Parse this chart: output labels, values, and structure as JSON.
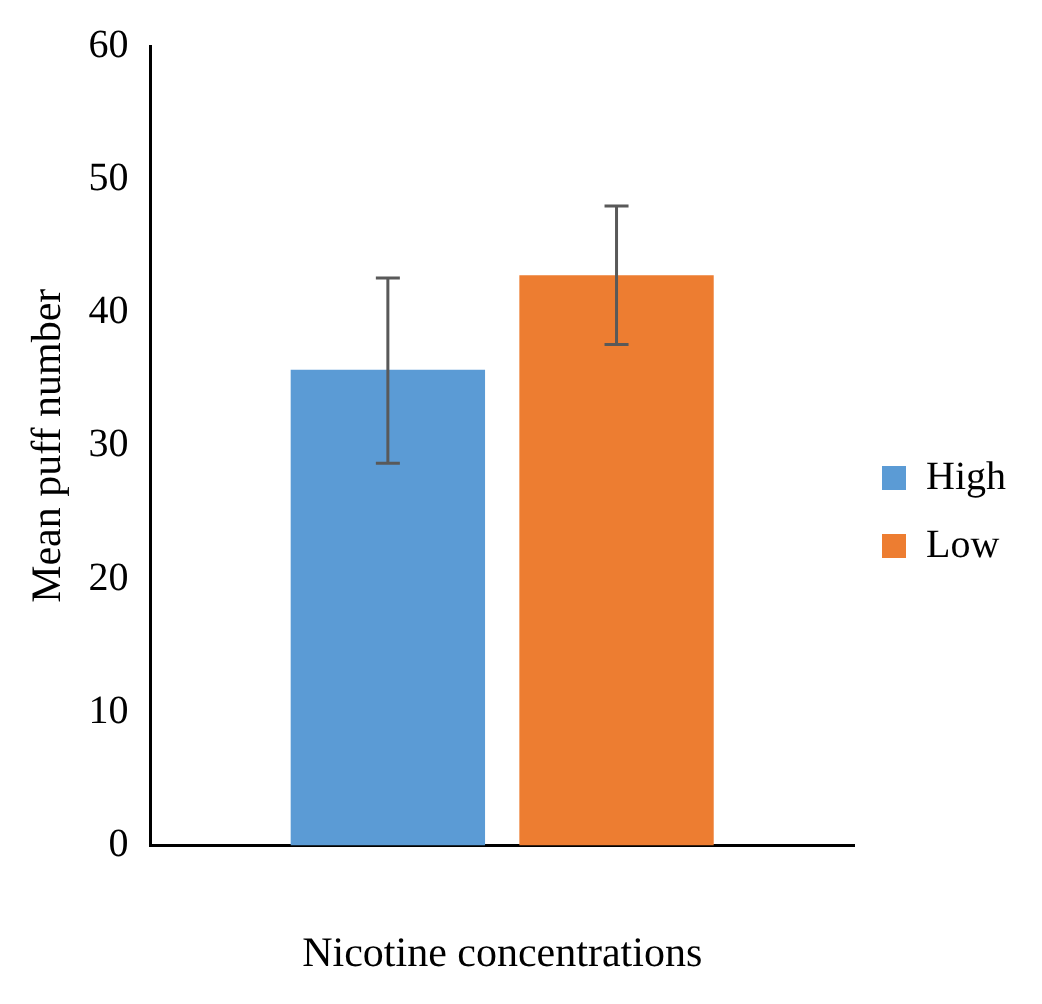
{
  "chart_data": {
    "type": "bar",
    "xlabel": "Nicotine concentrations",
    "ylabel": "Mean puff number",
    "categories": [
      null
    ],
    "series": [
      {
        "name": "High",
        "color": "#5b9bd5",
        "values": [
          35.7
        ],
        "errors": [
          [
            28.7,
            42.6
          ]
        ]
      },
      {
        "name": "Low",
        "color": "#ed7d31",
        "values": [
          42.8
        ],
        "errors": [
          [
            37.6,
            48.0
          ]
        ]
      }
    ],
    "ylim": [
      0,
      60
    ],
    "yticks": [
      0,
      10,
      20,
      30,
      40,
      50,
      60
    ],
    "grid": false,
    "legend": "right"
  }
}
